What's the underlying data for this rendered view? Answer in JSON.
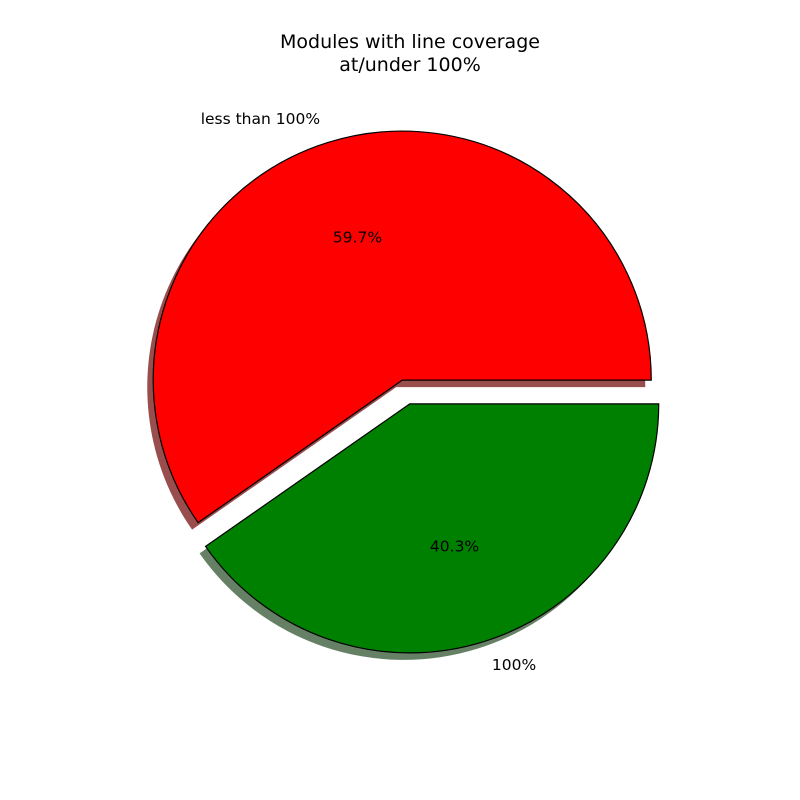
{
  "chart_data": {
    "type": "pie",
    "title_lines": [
      "Modules with line coverage",
      "at/under 100%"
    ],
    "slices": [
      {
        "label": "less than 100%",
        "value": 59.7,
        "percent_label": "59.7%",
        "color": "#ff0000",
        "shadow_color": "#994d4d",
        "exploded": true
      },
      {
        "label": "100%",
        "value": 40.3,
        "percent_label": "40.3%",
        "color": "#008000",
        "shadow_color": "#668066",
        "exploded": true
      }
    ],
    "start_angle_deg": 0,
    "direction": "counterclockwise",
    "shadow": true,
    "edge_color": "#000000"
  }
}
